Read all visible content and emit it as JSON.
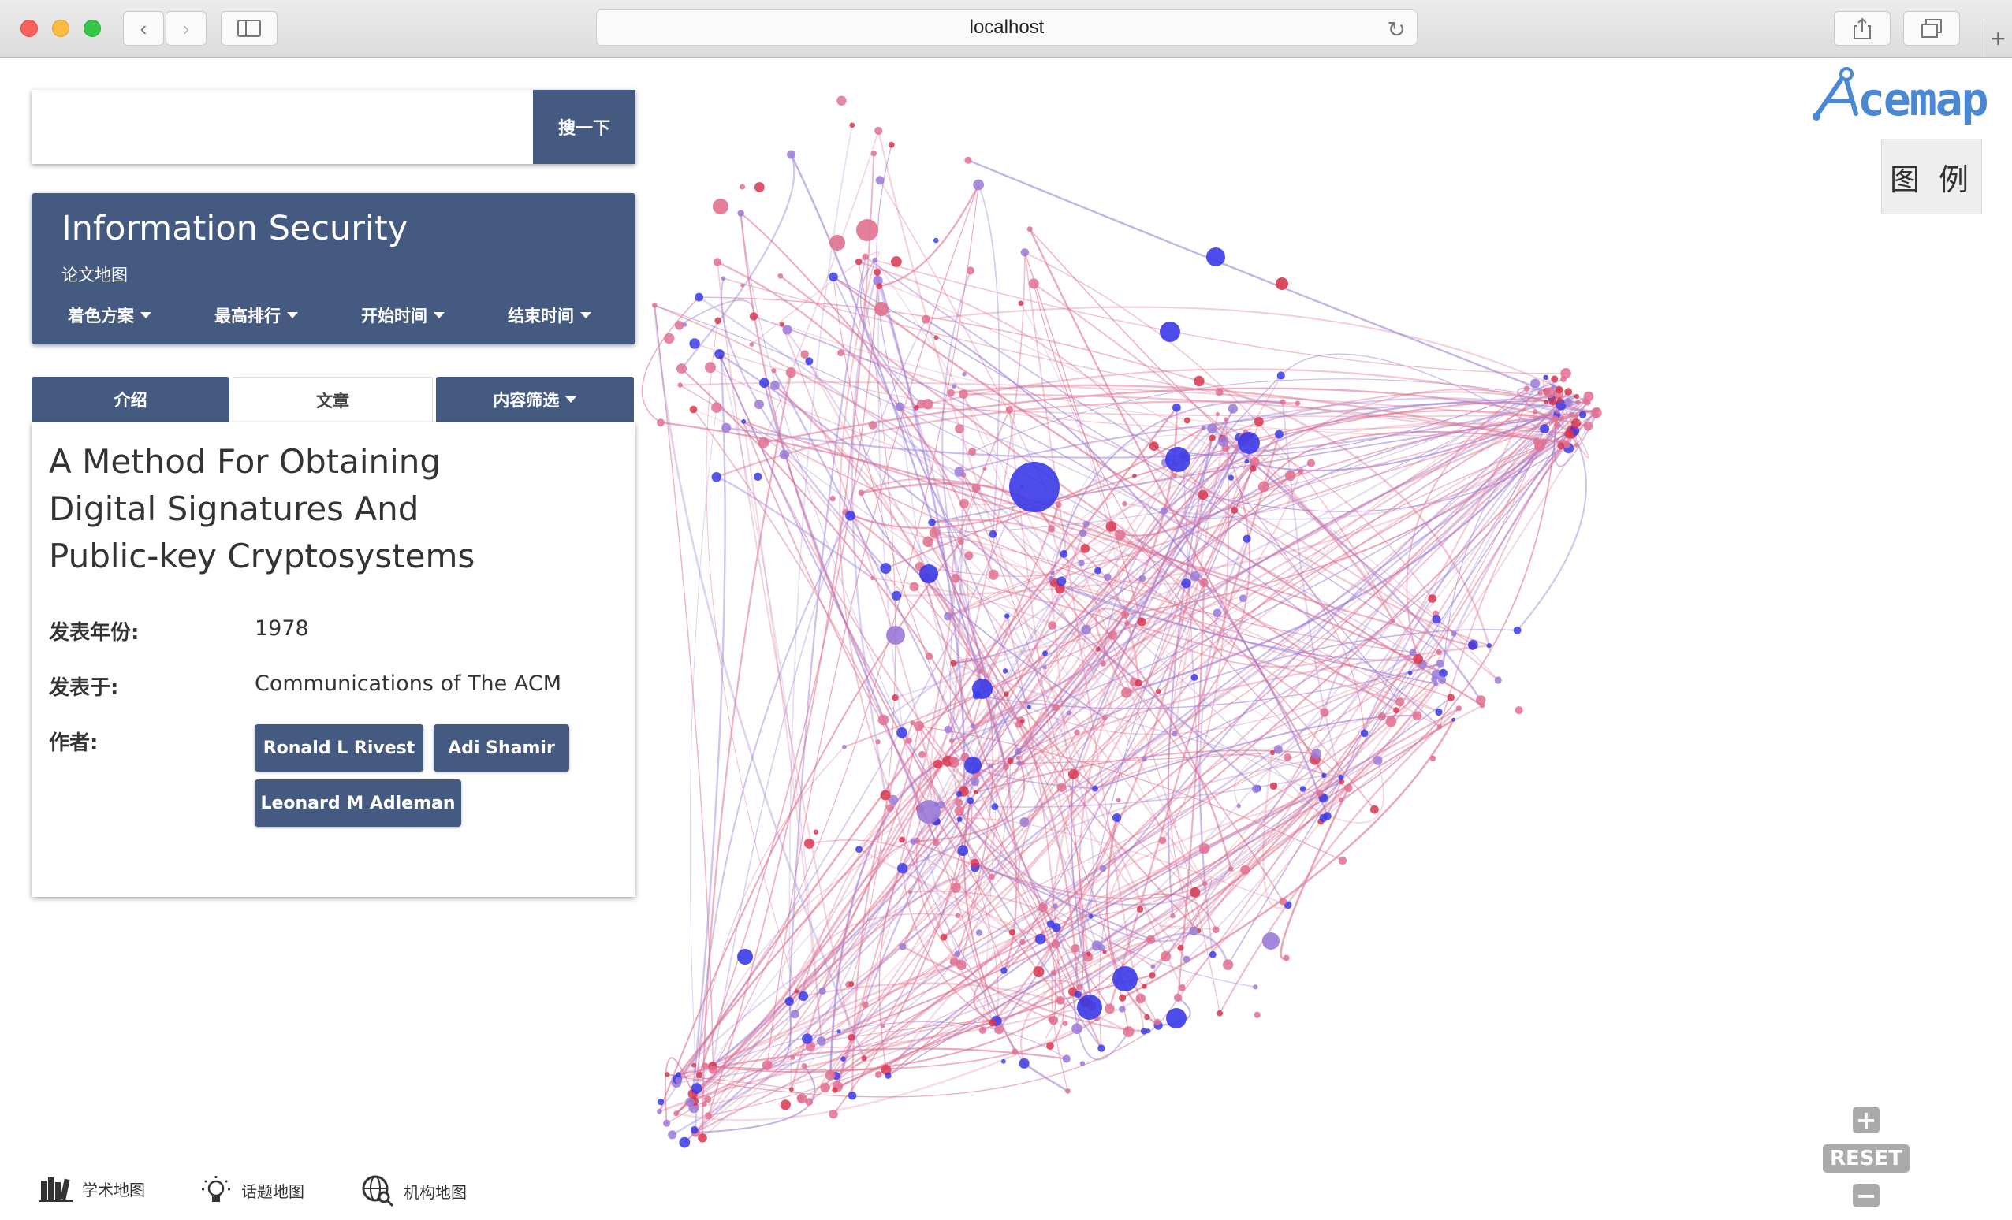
{
  "browser": {
    "url": "localhost"
  },
  "search": {
    "placeholder": "",
    "button_label": "搜一下"
  },
  "header": {
    "title": "Information Security",
    "subtitle": "论文地图",
    "menus": [
      "着色方案",
      "最高排行",
      "开始时间",
      "结束时间"
    ]
  },
  "tabs": [
    {
      "label": "介绍",
      "active": false
    },
    {
      "label": "文章",
      "active": true
    },
    {
      "label": "内容筛选",
      "active": false,
      "dropdown": true
    }
  ],
  "paper": {
    "title": "A Method For Obtaining Digital Signatures And Public-key Cryptosystems",
    "year_label": "发表年份:",
    "year": "1978",
    "venue_label": "发表于:",
    "venue": "Communications of The ACM",
    "authors_label": "作者:",
    "authors": [
      "Ronald L Rivest",
      "Adi Shamir",
      "Leonard M Adleman"
    ]
  },
  "logo": {
    "text": "cemap",
    "color": "#4a88d4"
  },
  "legend_label": "图 例",
  "zoom": {
    "plus": "+",
    "reset": "RESET",
    "minus": "−"
  },
  "bottom_nav": [
    "学术地图",
    "话题地图",
    "机构地图"
  ],
  "colors": {
    "primary": "#455a80",
    "node_pink": "#e07090",
    "node_red": "#d8364f",
    "node_blue": "#3a3ae8",
    "node_violet": "#9a7ad8"
  }
}
